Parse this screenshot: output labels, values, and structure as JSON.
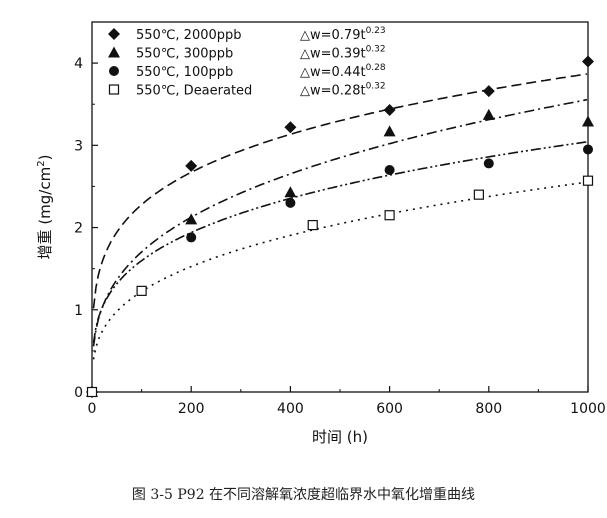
{
  "caption": "图 3-5 P92 在不同溶解氧浓度超临界水中氧化增重曲线",
  "chart_data": {
    "type": "scatter",
    "title": "",
    "xlabel": "时间 (h)",
    "ylabel_main": "增重 (mg/cm",
    "ylabel_sup": "2",
    "ylabel_tail": ")",
    "xlim": [
      0,
      1000
    ],
    "ylim": [
      0,
      4.5
    ],
    "x_ticks": [
      0,
      200,
      400,
      600,
      800,
      1000
    ],
    "y_ticks": [
      0,
      1,
      2,
      3,
      4
    ],
    "legend_position": "top-left",
    "series": [
      {
        "name": "550℃, 2000ppb",
        "marker": "diamond",
        "fit": {
          "base": "△w=0.79t",
          "exp": "0.23",
          "a": 0.79,
          "b": 0.23,
          "dash": "10,5"
        },
        "x": [
          0,
          200,
          400,
          600,
          800,
          1000
        ],
        "y": [
          0,
          2.75,
          3.22,
          3.43,
          3.66,
          4.02
        ]
      },
      {
        "name": "550℃, 300ppb",
        "marker": "triangle",
        "fit": {
          "base": "△w=0.39t",
          "exp": "0.32",
          "a": 0.39,
          "b": 0.32,
          "dash": "10,4,2,4"
        },
        "x": [
          0,
          200,
          400,
          600,
          800,
          1000
        ],
        "y": [
          0,
          2.1,
          2.43,
          3.17,
          3.37,
          3.29
        ]
      },
      {
        "name": "550℃, 100ppb",
        "marker": "circle",
        "fit": {
          "base": "△w=0.44t",
          "exp": "0.28",
          "a": 0.44,
          "b": 0.28,
          "dash": "10,3,2,3,2,3"
        },
        "x": [
          0,
          200,
          400,
          600,
          800,
          1000
        ],
        "y": [
          0,
          1.88,
          2.3,
          2.7,
          2.78,
          2.95
        ]
      },
      {
        "name": "550℃, Deaerated",
        "marker": "square-open",
        "fit": {
          "base": "△w=0.28t",
          "exp": "0.32",
          "a": 0.28,
          "b": 0.32,
          "dash": "2,5"
        },
        "x": [
          0,
          100,
          445,
          600,
          780,
          1000
        ],
        "y": [
          0,
          1.23,
          2.03,
          2.15,
          2.4,
          2.57
        ]
      }
    ]
  }
}
